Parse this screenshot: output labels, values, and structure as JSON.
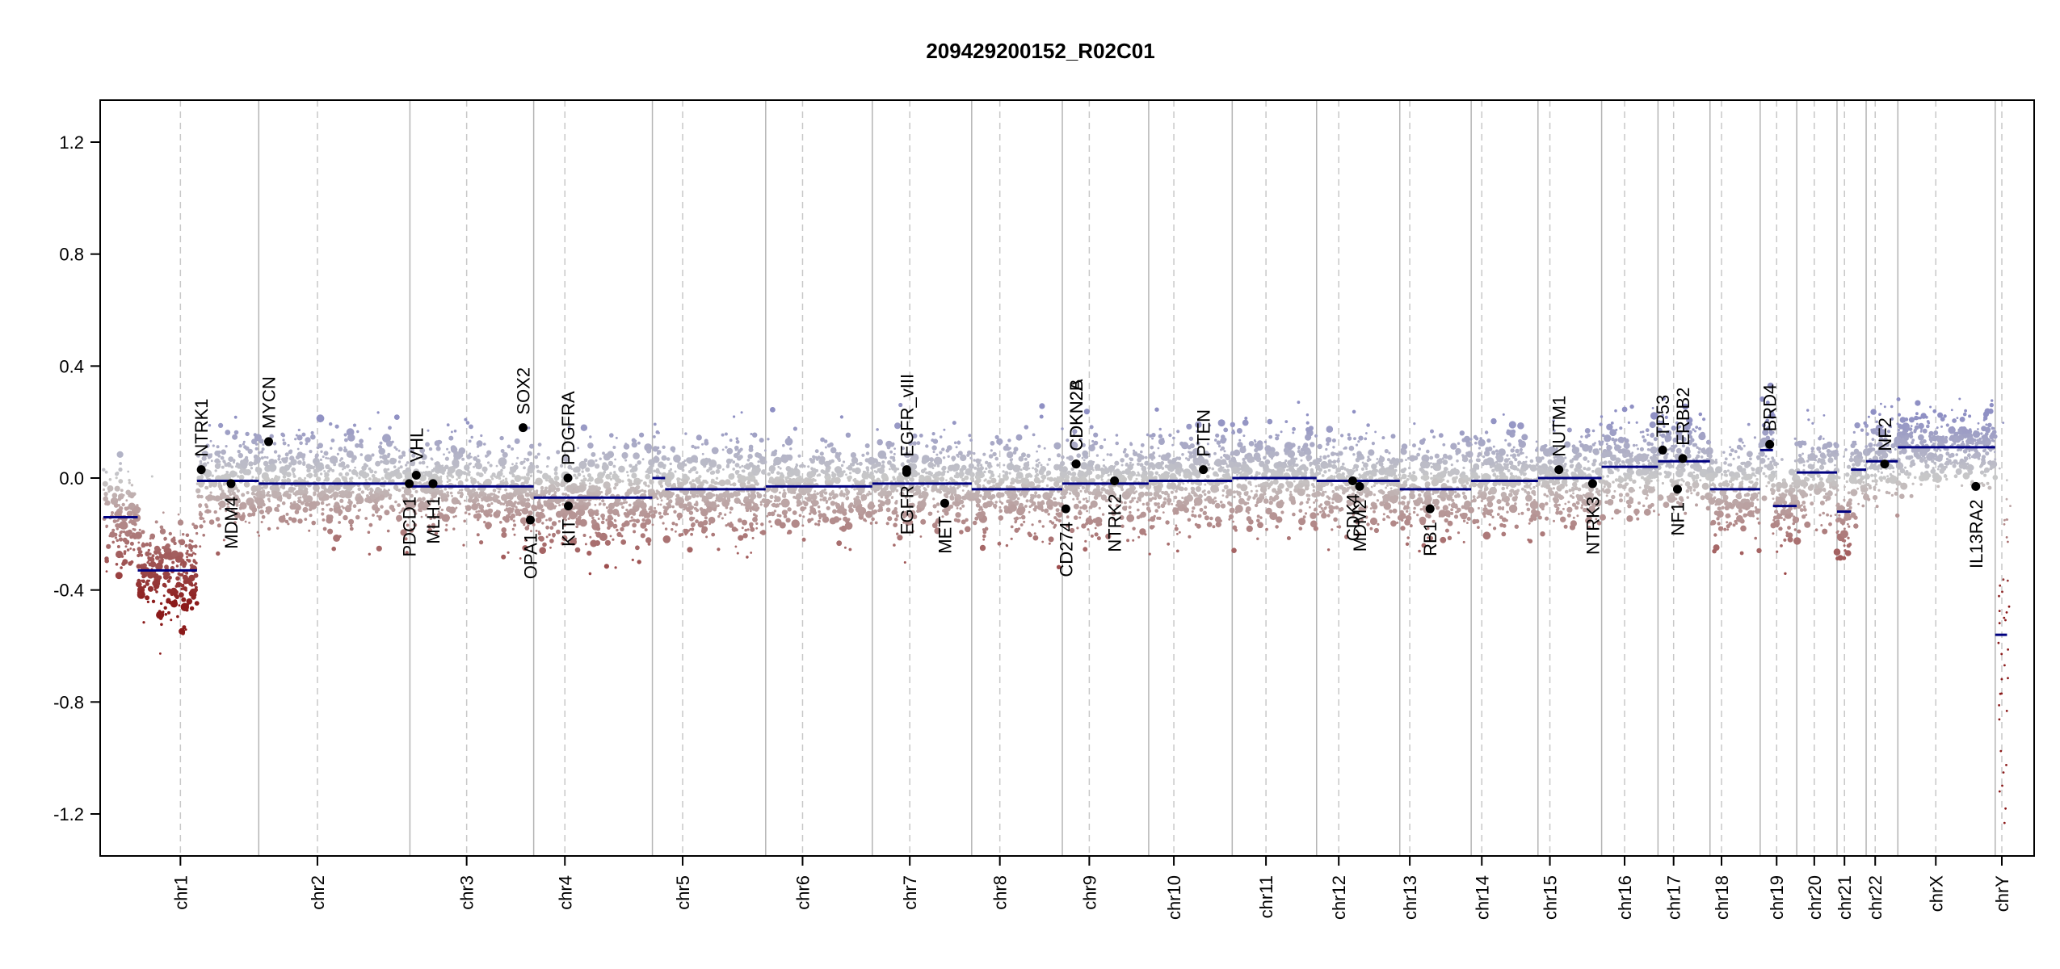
{
  "chart_data": {
    "type": "scatter",
    "title": "209429200152_R02C01",
    "xlabel": "",
    "ylabel": "",
    "ylim": [
      -1.35,
      1.35
    ],
    "yticks": [
      -1.2,
      -0.8,
      -0.4,
      0.0,
      0.4,
      0.8,
      1.2
    ],
    "ytick_labels": [
      "-1.2",
      "-0.8",
      "-0.4",
      "0.0",
      "0.4",
      "0.8",
      "1.2"
    ],
    "grid": "chromosome boundaries (solid) and centromeres (dashed)",
    "colors": {
      "gain": "#8f90c4",
      "neutral": "#c8c8c8",
      "loss": "#8b1a1a",
      "segment": "#000080",
      "gene": "#000000",
      "boundary": "#b4b4b4"
    },
    "chromosomes": [
      {
        "name": "chr1",
        "start": 0,
        "end": 248.9,
        "centromere": 123.4
      },
      {
        "name": "chr2",
        "start": 248.9,
        "end": 491.1,
        "centromere": 342.9
      },
      {
        "name": "chr3",
        "start": 491.1,
        "end": 689.4,
        "centromere": 582.0
      },
      {
        "name": "chr4",
        "start": 689.4,
        "end": 879.6,
        "centromere": 739.4
      },
      {
        "name": "chr5",
        "start": 879.6,
        "end": 1061.1,
        "centromere": 928.1
      },
      {
        "name": "chr6",
        "start": 1061.1,
        "end": 1231.9,
        "centromere": 1120.2
      },
      {
        "name": "chr7",
        "start": 1231.9,
        "end": 1391.2,
        "centromere": 1292.0
      },
      {
        "name": "chr8",
        "start": 1391.2,
        "end": 1536.4,
        "centromere": 1436.3
      },
      {
        "name": "chr9",
        "start": 1536.4,
        "end": 1674.8,
        "centromere": 1579.6
      },
      {
        "name": "chr10",
        "start": 1674.8,
        "end": 1808.6,
        "centromere": 1715.1
      },
      {
        "name": "chr11",
        "start": 1808.6,
        "end": 1943.8,
        "centromere": 1862.7
      },
      {
        "name": "chr12",
        "start": 1943.8,
        "end": 2077.1,
        "centromere": 1979.3
      },
      {
        "name": "chr13",
        "start": 2077.1,
        "end": 2191.5,
        "centromere": 2093.1
      },
      {
        "name": "chr14",
        "start": 2191.5,
        "end": 2298.5,
        "centromere": 2208.5
      },
      {
        "name": "chr15",
        "start": 2298.5,
        "end": 2400.5,
        "centromere": 2317.6
      },
      {
        "name": "chr16",
        "start": 2400.5,
        "end": 2490.8,
        "centromere": 2437.3
      },
      {
        "name": "chr17",
        "start": 2490.8,
        "end": 2574.1,
        "centromere": 2515.8
      },
      {
        "name": "chr18",
        "start": 2574.1,
        "end": 2654.5,
        "centromere": 2592.6
      },
      {
        "name": "chr19",
        "start": 2654.5,
        "end": 2713.1,
        "centromere": 2680.9
      },
      {
        "name": "chr20",
        "start": 2713.1,
        "end": 2777.6,
        "centromere": 2741.2
      },
      {
        "name": "chr21",
        "start": 2777.6,
        "end": 2824.3,
        "centromere": 2789.6
      },
      {
        "name": "chr22",
        "start": 2824.3,
        "end": 2875.1,
        "centromere": 2838.8
      },
      {
        "name": "chrX",
        "start": 2875.1,
        "end": 3031.1,
        "centromere": 2935.9
      },
      {
        "name": "chrY",
        "start": 3031.1,
        "end": 3088.3,
        "centromere": 3041.7
      }
    ],
    "segments": [
      {
        "start": 0,
        "end": 55,
        "value": -0.14
      },
      {
        "start": 55,
        "end": 150,
        "value": -0.33
      },
      {
        "start": 150,
        "end": 248.9,
        "value": -0.01
      },
      {
        "start": 248.9,
        "end": 491.1,
        "value": -0.02
      },
      {
        "start": 491.1,
        "end": 689.4,
        "value": -0.03
      },
      {
        "start": 689.4,
        "end": 879.6,
        "value": -0.07
      },
      {
        "start": 879.6,
        "end": 900,
        "value": 0.0
      },
      {
        "start": 900,
        "end": 1061.1,
        "value": -0.04
      },
      {
        "start": 1061.1,
        "end": 1231.9,
        "value": -0.03
      },
      {
        "start": 1231.9,
        "end": 1391.2,
        "value": -0.02
      },
      {
        "start": 1391.2,
        "end": 1536.4,
        "value": -0.04
      },
      {
        "start": 1536.4,
        "end": 1674.8,
        "value": -0.02
      },
      {
        "start": 1674.8,
        "end": 1808.6,
        "value": -0.01
      },
      {
        "start": 1808.6,
        "end": 1943.8,
        "value": 0.0
      },
      {
        "start": 1943.8,
        "end": 2077.1,
        "value": -0.01
      },
      {
        "start": 2077.1,
        "end": 2191.5,
        "value": -0.04
      },
      {
        "start": 2191.5,
        "end": 2298.5,
        "value": -0.01
      },
      {
        "start": 2298.5,
        "end": 2400.5,
        "value": 0.0
      },
      {
        "start": 2400.5,
        "end": 2490.8,
        "value": 0.04
      },
      {
        "start": 2490.8,
        "end": 2574.1,
        "value": 0.06
      },
      {
        "start": 2574.1,
        "end": 2654.5,
        "value": -0.04
      },
      {
        "start": 2654.5,
        "end": 2675,
        "value": 0.1
      },
      {
        "start": 2675,
        "end": 2713.1,
        "value": -0.1
      },
      {
        "start": 2713.1,
        "end": 2777.6,
        "value": 0.02
      },
      {
        "start": 2777.6,
        "end": 2800,
        "value": -0.12
      },
      {
        "start": 2800,
        "end": 2824.3,
        "value": 0.03
      },
      {
        "start": 2824.3,
        "end": 2875.1,
        "value": 0.06
      },
      {
        "start": 2875.1,
        "end": 3031.1,
        "value": 0.11
      },
      {
        "start": 3031.1,
        "end": 3050,
        "value": -0.56
      }
    ],
    "genes": [
      {
        "name": "NTRK1",
        "pos": 156.8,
        "value": 0.03,
        "label": "above"
      },
      {
        "name": "MDM4",
        "pos": 204.5,
        "value": -0.02,
        "label": "below"
      },
      {
        "name": "MYCN",
        "pos": 264.7,
        "value": 0.13,
        "label": "above"
      },
      {
        "name": "PDCD1",
        "pos": 490.0,
        "value": -0.02,
        "label": "below"
      },
      {
        "name": "VHL",
        "pos": 501.3,
        "value": 0.01,
        "label": "above"
      },
      {
        "name": "MLH1",
        "pos": 528.1,
        "value": -0.02,
        "label": "below"
      },
      {
        "name": "SOX2",
        "pos": 672.4,
        "value": 0.18,
        "label": "above"
      },
      {
        "name": "OPA1",
        "pos": 684.0,
        "value": -0.15,
        "label": "below"
      },
      {
        "name": "PDGFRA",
        "pos": 744.3,
        "value": 0.0,
        "label": "above"
      },
      {
        "name": "KIT",
        "pos": 744.9,
        "value": -0.1,
        "label": "below"
      },
      {
        "name": "EGFR_vIII",
        "pos": 1287.0,
        "value": 0.03,
        "label": "above"
      },
      {
        "name": "EGFR",
        "pos": 1287.0,
        "value": 0.02,
        "label": "below"
      },
      {
        "name": "MET",
        "pos": 1348.0,
        "value": -0.09,
        "label": "below"
      },
      {
        "name": "CD274",
        "pos": 1542.0,
        "value": -0.11,
        "label": "below"
      },
      {
        "name": "CDKN2A",
        "pos": 1558.4,
        "value": 0.05,
        "label": "above"
      },
      {
        "name": "CDKN2B",
        "pos": 1558.6,
        "value": 0.05,
        "label": "above"
      },
      {
        "name": "NTRK2",
        "pos": 1620.0,
        "value": -0.01,
        "label": "below"
      },
      {
        "name": "PTEN",
        "pos": 1762.3,
        "value": 0.03,
        "label": "above"
      },
      {
        "name": "CDK4",
        "pos": 2001.6,
        "value": -0.01,
        "label": "below"
      },
      {
        "name": "MDM2",
        "pos": 2012.7,
        "value": -0.03,
        "label": "below"
      },
      {
        "name": "RB1",
        "pos": 2125.6,
        "value": -0.11,
        "label": "below"
      },
      {
        "name": "NUTM1",
        "pos": 2332.0,
        "value": 0.03,
        "label": "above"
      },
      {
        "name": "NTRK3",
        "pos": 2386.0,
        "value": -0.02,
        "label": "below"
      },
      {
        "name": "TP53",
        "pos": 2498.3,
        "value": 0.1,
        "label": "above"
      },
      {
        "name": "NF1",
        "pos": 2522.0,
        "value": -0.04,
        "label": "below"
      },
      {
        "name": "ERBB2",
        "pos": 2530.5,
        "value": 0.07,
        "label": "above"
      },
      {
        "name": "BRD4",
        "pos": 2669.8,
        "value": 0.12,
        "label": "above"
      },
      {
        "name": "NF2",
        "pos": 2853.9,
        "value": 0.05,
        "label": "above"
      },
      {
        "name": "IL13RA2",
        "pos": 3000.0,
        "value": -0.03,
        "label": "below"
      }
    ]
  }
}
